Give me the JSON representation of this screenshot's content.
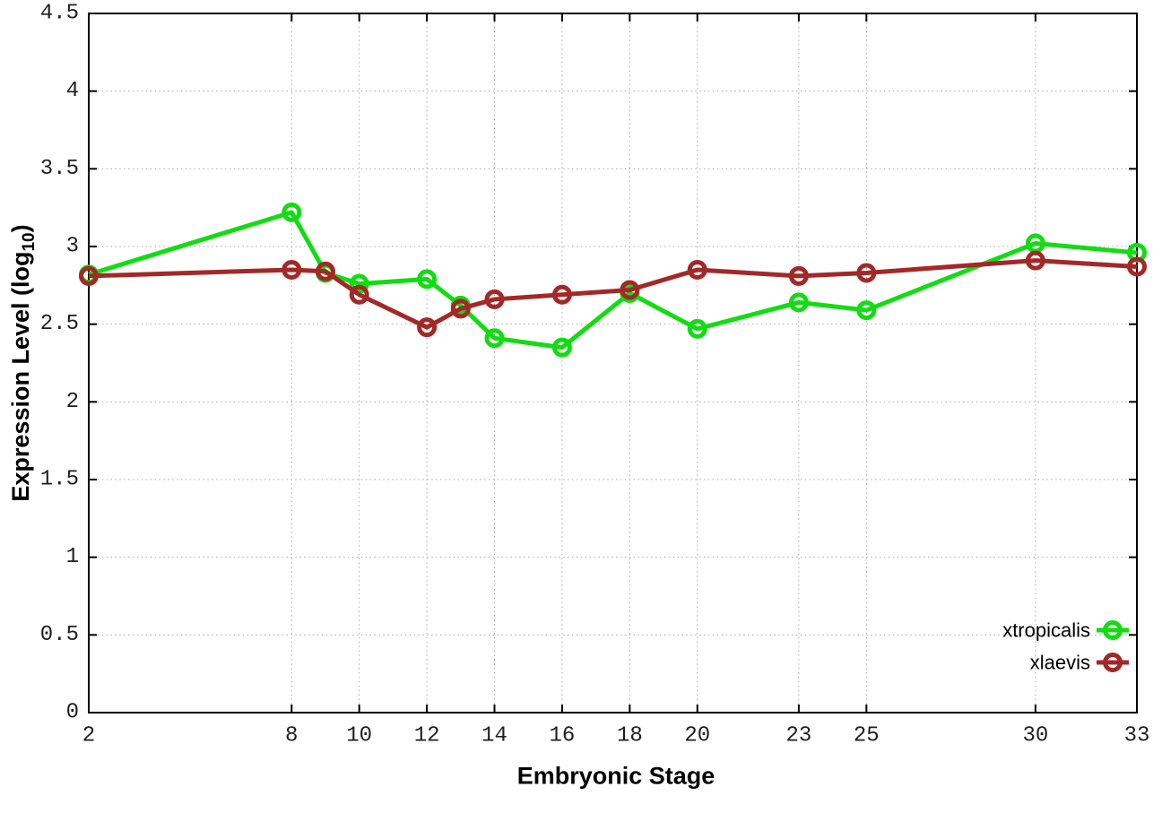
{
  "chart_data": {
    "type": "line",
    "title": "",
    "xlabel": "Embryonic Stage",
    "ylabel": "Expression Level (log10)",
    "ylabel_parts": {
      "main": "Expression Level (log",
      "sub": "10",
      "end": ")"
    },
    "xlim": [
      2,
      33
    ],
    "ylim": [
      0,
      4.5
    ],
    "grid": true,
    "grid_style": "dotted",
    "legend_position": "bottom-right",
    "x_ticks": [
      2,
      8,
      10,
      12,
      14,
      16,
      18,
      20,
      23,
      25,
      30,
      33
    ],
    "x_tick_labels": [
      "2",
      "8",
      "10",
      "12",
      "14",
      "16",
      "18",
      "20",
      "23",
      "25",
      "30",
      "33"
    ],
    "y_ticks": [
      0,
      0.5,
      1,
      1.5,
      2,
      2.5,
      3,
      3.5,
      4,
      4.5
    ],
    "y_tick_labels": [
      "0",
      "0.5",
      "1",
      "1.5",
      "2",
      "2.5",
      "3",
      "3.5",
      "4",
      "4.5"
    ],
    "x": [
      2,
      8,
      9,
      10,
      12,
      13,
      14,
      16,
      18,
      20,
      23,
      25,
      30,
      33
    ],
    "series": [
      {
        "name": "xtropicalis",
        "color": "#12dc12",
        "marker": "open-circle",
        "values": [
          2.82,
          3.22,
          2.83,
          2.76,
          2.79,
          2.62,
          2.41,
          2.35,
          2.7,
          2.47,
          2.64,
          2.59,
          3.02,
          2.96
        ]
      },
      {
        "name": "xlaevis",
        "color": "#a32828",
        "marker": "open-circle",
        "values": [
          2.81,
          2.85,
          2.84,
          2.69,
          2.48,
          2.6,
          2.66,
          2.69,
          2.72,
          2.85,
          2.81,
          2.83,
          2.91,
          2.87
        ]
      }
    ],
    "colors": {
      "background": "#ffffff",
      "grid": "#a8a8a8",
      "axis": "#000000"
    }
  }
}
